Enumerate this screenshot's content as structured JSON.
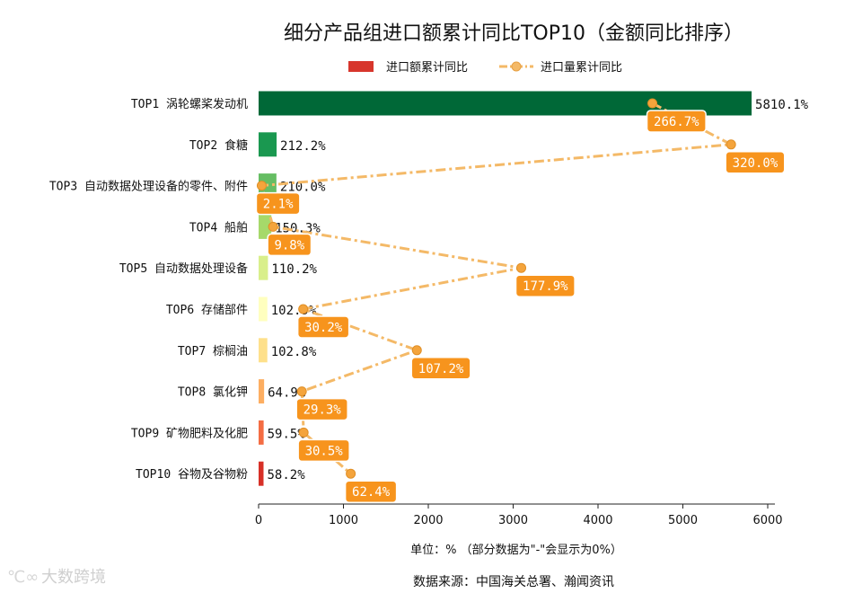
{
  "chart_data": {
    "type": "bar",
    "title": "细分产品组进口额累计同比TOP10（金额同比排序）",
    "legend": [
      {
        "name": "进口额累计同比",
        "color": "#d7362c",
        "kind": "bar"
      },
      {
        "name": "进口量累计同比",
        "color": "#f4b967",
        "kind": "line"
      }
    ],
    "categories": [
      "TOP1 涡轮螺桨发动机",
      "TOP2 食糖",
      "TOP3 自动数据处理设备的零件、附件",
      "TOP4 船舶",
      "TOP5 自动数据处理设备",
      "TOP6 存储部件",
      "TOP7 棕榈油",
      "TOP8 氯化钾",
      "TOP9 矿物肥料及化肥",
      "TOP10 谷物及谷物粉"
    ],
    "series": [
      {
        "name": "进口额累计同比",
        "values": [
          5810.1,
          212.2,
          210.0,
          150.3,
          110.2,
          102.9,
          102.8,
          64.9,
          59.5,
          58.2
        ],
        "labels": [
          "5810.1%",
          "212.2%",
          "210.0%",
          "150.3%",
          "110.2%",
          "102.9%",
          "102.8%",
          "64.9%",
          "59.5%",
          "58.2%"
        ],
        "colors": [
          "#006837",
          "#1a9850",
          "#66bd63",
          "#a6d96a",
          "#d9ef8b",
          "#ffffbf",
          "#fee08b",
          "#fdae61",
          "#f46d43",
          "#d73027"
        ]
      },
      {
        "name": "进口量累计同比",
        "values": [
          266.7,
          320.0,
          2.1,
          9.8,
          177.9,
          30.2,
          107.2,
          29.3,
          30.5,
          62.4
        ],
        "labels": [
          "266.7%",
          "320.0%",
          "2.1%",
          "9.8%",
          "177.9%",
          "30.2%",
          "107.2%",
          "29.3%",
          "30.5%",
          "62.4%"
        ]
      }
    ],
    "xlim": [
      0,
      6000
    ],
    "xticks": [
      "0",
      "1000",
      "2000",
      "3000",
      "4000",
      "5000",
      "6000"
    ],
    "xlabel": "单位：%  （部分数据为\"-\"会显示为0%）",
    "source": "数据来源：中国海关总署、瀚闻资讯",
    "watermark": "大数跨境",
    "line_color": "#f4b967",
    "label_bg": "#f7941d"
  }
}
